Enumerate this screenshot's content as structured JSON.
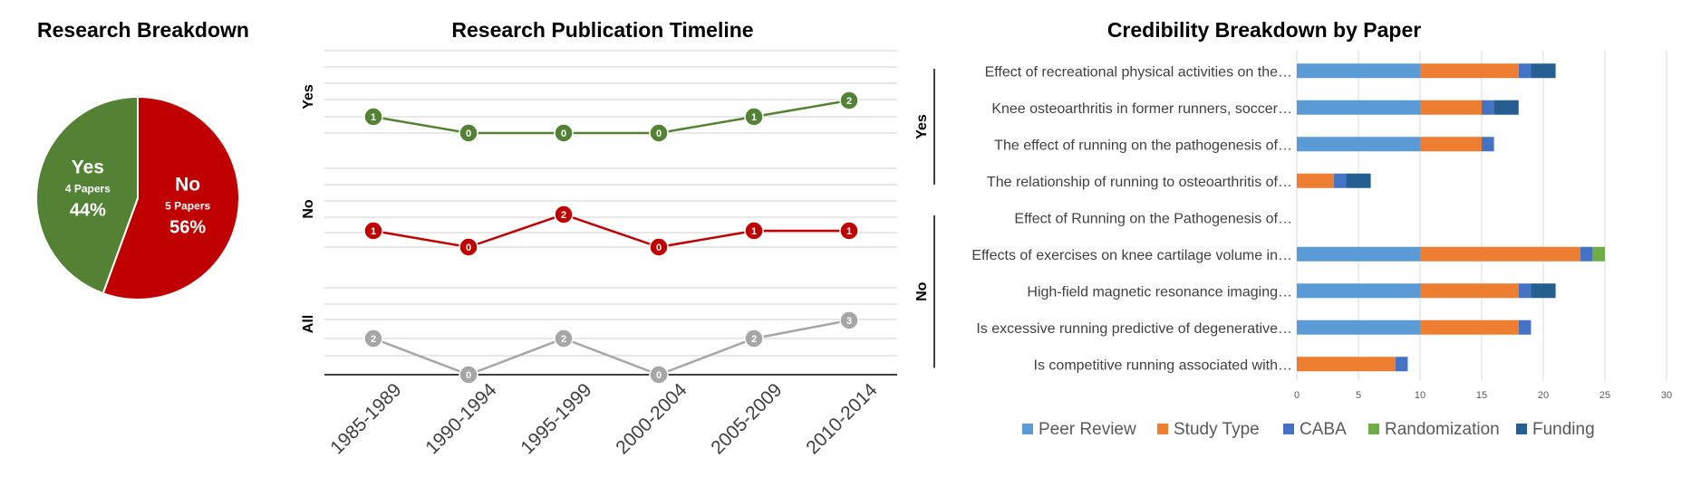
{
  "colors": {
    "yes": "#548235",
    "no": "#c00000",
    "all": "#a6a6a6",
    "peer_review": "#5b9bd5",
    "study_type": "#ed7d31",
    "caba": "#4472c4",
    "randomization": "#70ad47",
    "funding": "#255e91"
  },
  "chart_data": [
    {
      "type": "pie",
      "title": "Research Breakdown",
      "slices": [
        {
          "label": "No",
          "sublabel": "5 Papers",
          "value": 5,
          "percent": "56%",
          "color": "#c00000"
        },
        {
          "label": "Yes",
          "sublabel": "4 Papers",
          "value": 4,
          "percent": "44%",
          "color": "#548235"
        }
      ]
    },
    {
      "type": "line",
      "title": "Research Publication Timeline",
      "categories": [
        "1985-1989",
        "1990-1994",
        "1995-1999",
        "2000-2004",
        "2005-2009",
        "2010-2014"
      ],
      "series": [
        {
          "name": "Yes",
          "values": [
            1,
            0,
            0,
            0,
            1,
            2
          ],
          "color": "#548235"
        },
        {
          "name": "No",
          "values": [
            1,
            0,
            2,
            0,
            1,
            1
          ],
          "color": "#c00000"
        },
        {
          "name": "All",
          "values": [
            2,
            0,
            2,
            0,
            2,
            3
          ],
          "color": "#a6a6a6"
        }
      ]
    },
    {
      "type": "bar",
      "orientation": "horizontal",
      "stacked": true,
      "title": "Credibility Breakdown by Paper",
      "groups": [
        {
          "name": "Yes",
          "count": 4
        },
        {
          "name": "No",
          "count": 5
        }
      ],
      "categories": [
        "Effect of recreational physical activities on the…",
        "Knee osteoarthritis in former runners, soccer…",
        "The effect of running on the pathogenesis of…",
        "The relationship of running to osteoarthritis of…",
        "Effect of Running on the Pathogenesis of…",
        "Effects of exercises on knee cartilage volume in…",
        "High-field magnetic resonance imaging…",
        "Is excessive running predictive of degenerative…",
        "Is competitive running associated with…"
      ],
      "series": [
        {
          "name": "Peer Review",
          "color": "#5b9bd5",
          "values": [
            10,
            10,
            10,
            0,
            0,
            10,
            10,
            10,
            0
          ]
        },
        {
          "name": "Study Type",
          "color": "#ed7d31",
          "values": [
            8,
            5,
            5,
            3,
            0,
            13,
            8,
            8,
            8
          ]
        },
        {
          "name": "CABA",
          "color": "#4472c4",
          "values": [
            1,
            1,
            1,
            1,
            0,
            1,
            1,
            1,
            1
          ]
        },
        {
          "name": "Randomization",
          "color": "#70ad47",
          "values": [
            0,
            0,
            0,
            0,
            0,
            1,
            0,
            0,
            0
          ]
        },
        {
          "name": "Funding",
          "color": "#255e91",
          "values": [
            2,
            2,
            0,
            2,
            0,
            0,
            2,
            0,
            0
          ]
        }
      ],
      "xlim": [
        0,
        30
      ],
      "xticks": [
        0,
        5,
        10,
        15,
        20,
        25,
        30
      ],
      "grid": true,
      "legend": "bottom"
    }
  ]
}
